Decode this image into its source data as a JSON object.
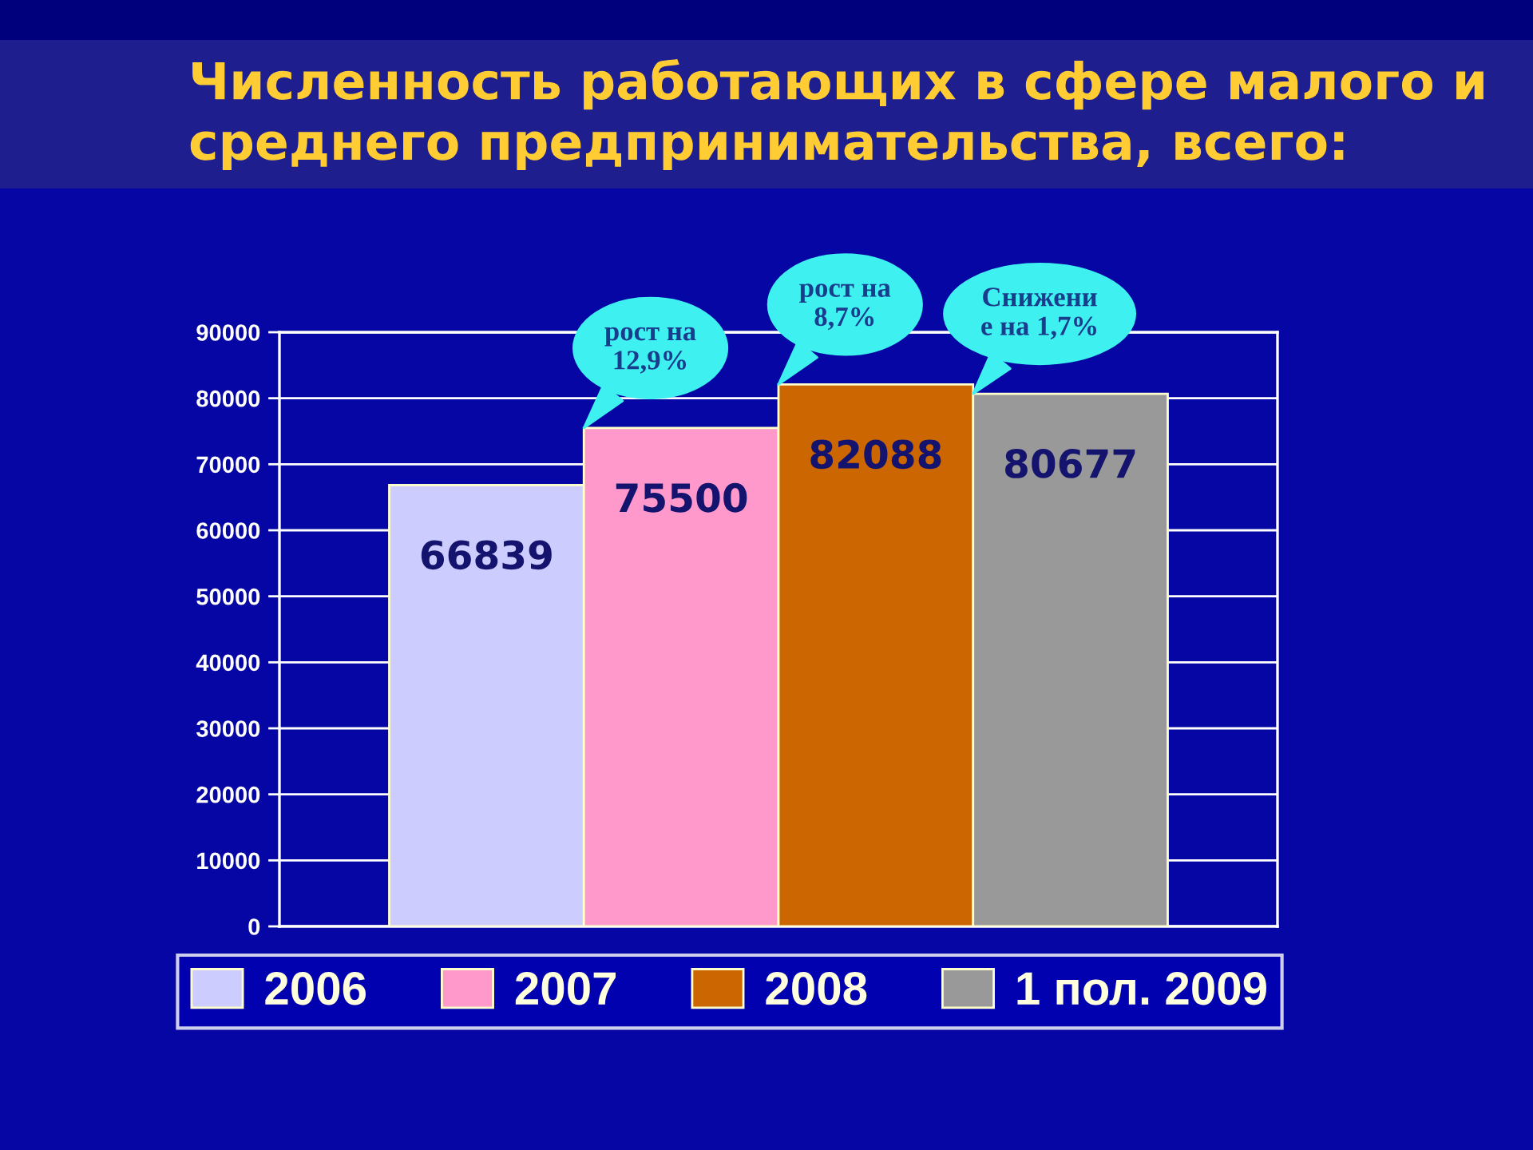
{
  "chart_data": {
    "type": "bar",
    "title": "Численность работающих в сфере малого и\nсреднего предпринимательства, всего:",
    "categories": [
      null
    ],
    "series": [
      {
        "name": "2006",
        "color": "#ccccff",
        "values": [
          66839
        ]
      },
      {
        "name": "2007",
        "color": "#ff99cc",
        "values": [
          75500
        ]
      },
      {
        "name": "2008",
        "color": "#cc6600",
        "values": [
          82088
        ]
      },
      {
        "name": "1 пол. 2009",
        "color": "#999999",
        "values": [
          80677
        ]
      }
    ],
    "ylim": [
      0,
      90000
    ],
    "yticks": [
      0,
      10000,
      20000,
      30000,
      40000,
      50000,
      60000,
      70000,
      80000,
      90000
    ],
    "grid": "y",
    "legend": "bottom",
    "tick_labels": "y",
    "data_labels": true,
    "annotations": [
      {
        "text": "рост на\n12,9%",
        "y": 75500
      },
      {
        "text": "рост на\n8,7%",
        "y": 82088
      },
      {
        "text": "Снижени\nе на 1,7%",
        "y": 80677
      }
    ]
  }
}
